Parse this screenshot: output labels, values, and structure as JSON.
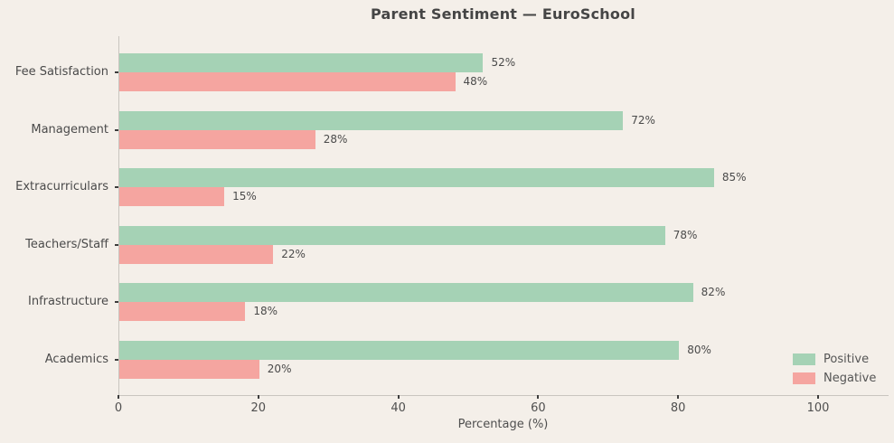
{
  "chart_data": {
    "type": "bar",
    "orientation": "horizontal",
    "title": "Parent Sentiment — EuroSchool",
    "categories": [
      "Fee Satisfaction",
      "Management",
      "Extracurriculars",
      "Teachers/Staff",
      "Infrastructure",
      "Academics"
    ],
    "series": [
      {
        "name": "Positive",
        "color": "#a5d2b5",
        "values": [
          52,
          72,
          85,
          78,
          82,
          80
        ]
      },
      {
        "name": "Negative",
        "color": "#f5a5a0",
        "values": [
          48,
          28,
          15,
          22,
          18,
          20
        ]
      }
    ],
    "value_suffix": "%",
    "value_labels": {
      "Positive": [
        "52%",
        "72%",
        "85%",
        "78%",
        "82%",
        "80%"
      ],
      "Negative": [
        "48%",
        "28%",
        "15%",
        "22%",
        "18%",
        "20%"
      ]
    },
    "xlabel": "Percentage (%)",
    "x_ticks": [
      "0",
      "20",
      "40",
      "60",
      "80",
      "100"
    ],
    "x_tick_values": [
      0,
      20,
      40,
      60,
      80,
      100
    ],
    "xlim": [
      0,
      110
    ],
    "grid": false,
    "legend": {
      "position": "lower right",
      "entries": [
        "Positive",
        "Negative"
      ]
    },
    "colors": {
      "background": "#f4efe9",
      "positive": "#a5d2b5",
      "negative": "#f5a5a0",
      "title_text": "#454545",
      "tick_text": "#4a4a4a",
      "spine": "#c9c5bf"
    }
  }
}
